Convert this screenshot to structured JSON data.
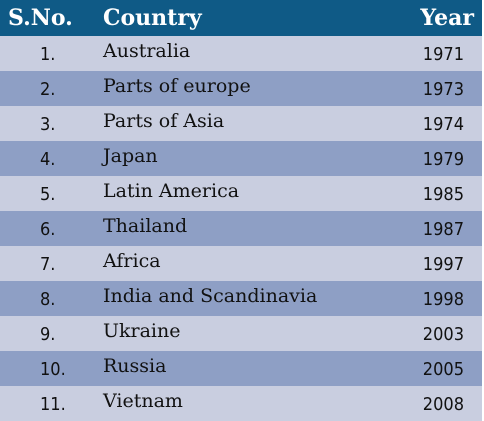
{
  "header": {
    "sno": "S.No.",
    "country": "Country",
    "year": "Year"
  },
  "rows": [
    {
      "sno": "1.",
      "country": "Australia",
      "year": "1971"
    },
    {
      "sno": "2.",
      "country": "Parts of europe",
      "year": "1973"
    },
    {
      "sno": "3.",
      "country": "Parts of Asia",
      "year": "1974"
    },
    {
      "sno": "4.",
      "country": "Japan",
      "year": "1979"
    },
    {
      "sno": "5.",
      "country": "Latin America",
      "year": "1985"
    },
    {
      "sno": "6.",
      "country": "Thailand",
      "year": "1987"
    },
    {
      "sno": "7.",
      "country": "Africa",
      "year": "1997"
    },
    {
      "sno": "8.",
      "country": "India and Scandinavia",
      "year": "1998"
    },
    {
      "sno": "9.",
      "country": "Ukraine",
      "year": "2003"
    },
    {
      "sno": "10.",
      "country": "Russia",
      "year": "2005"
    },
    {
      "sno": "11.",
      "country": "Vietnam",
      "year": "2008"
    }
  ],
  "colors": {
    "header_bg": "#0f5a86",
    "row_light": "#c9cee0",
    "row_dark": "#8e9fc5"
  }
}
